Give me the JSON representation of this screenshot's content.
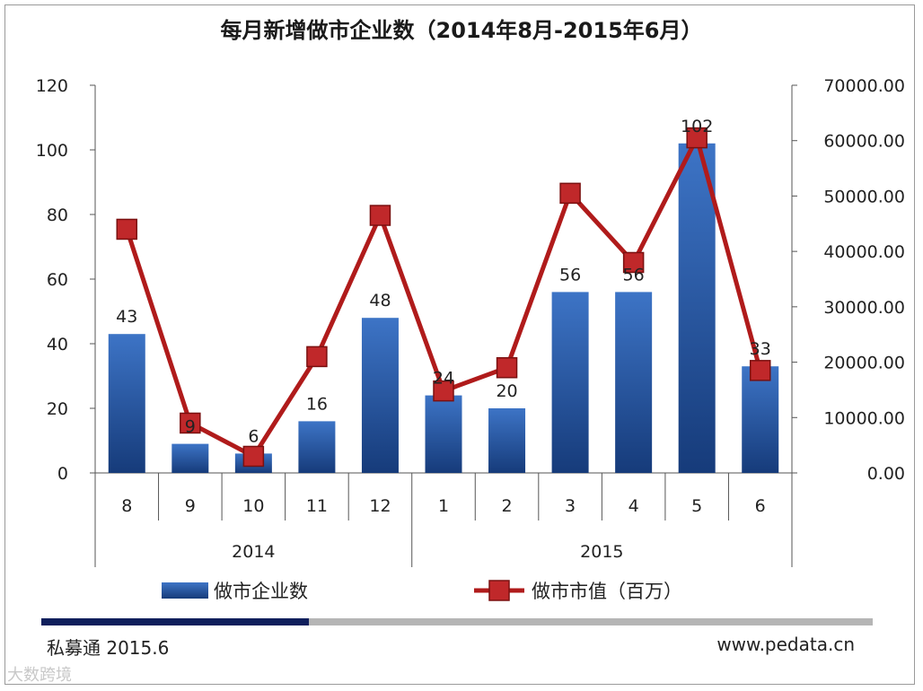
{
  "chart_data": {
    "type": "bar",
    "title": "每月新增做市企业数（2014年8月-2015年6月）",
    "categories": [
      "8",
      "9",
      "10",
      "11",
      "12",
      "1",
      "2",
      "3",
      "4",
      "5",
      "6"
    ],
    "year_groups": [
      {
        "label": "2014",
        "count": 5
      },
      {
        "label": "2015",
        "count": 6
      }
    ],
    "series": [
      {
        "name": "做市企业数",
        "type": "bar",
        "axis": "left",
        "values": [
          43,
          9,
          6,
          16,
          48,
          24,
          20,
          56,
          56,
          102,
          33
        ],
        "data_labels": [
          "43",
          "9",
          "6",
          "16",
          "48",
          "24",
          "20",
          "56",
          "56",
          "102",
          "33"
        ]
      },
      {
        "name": "做市市值（百万）",
        "type": "line",
        "axis": "right",
        "values": [
          44000,
          9000,
          3000,
          21000,
          46500,
          14800,
          19000,
          50500,
          38000,
          60500,
          18500
        ]
      }
    ],
    "ylim_left": [
      0,
      120
    ],
    "yticks_left": [
      "0",
      "20",
      "40",
      "60",
      "80",
      "100",
      "120"
    ],
    "ylim_right": [
      0,
      70000
    ],
    "yticks_right": [
      "0.00",
      "10000.00",
      "20000.00",
      "30000.00",
      "40000.00",
      "50000.00",
      "60000.00",
      "70000.00"
    ],
    "grid": false,
    "legend_position": "bottom"
  },
  "colors": {
    "bar": "#2a5aa6",
    "bar_dark": "#163b7a",
    "line": "#b01b1b",
    "marker": "#c0282a",
    "axis": "#555555"
  },
  "footer": {
    "source": "私募通 2015.6",
    "website": "www.pedata.cn",
    "watermark": "大数跨境"
  }
}
